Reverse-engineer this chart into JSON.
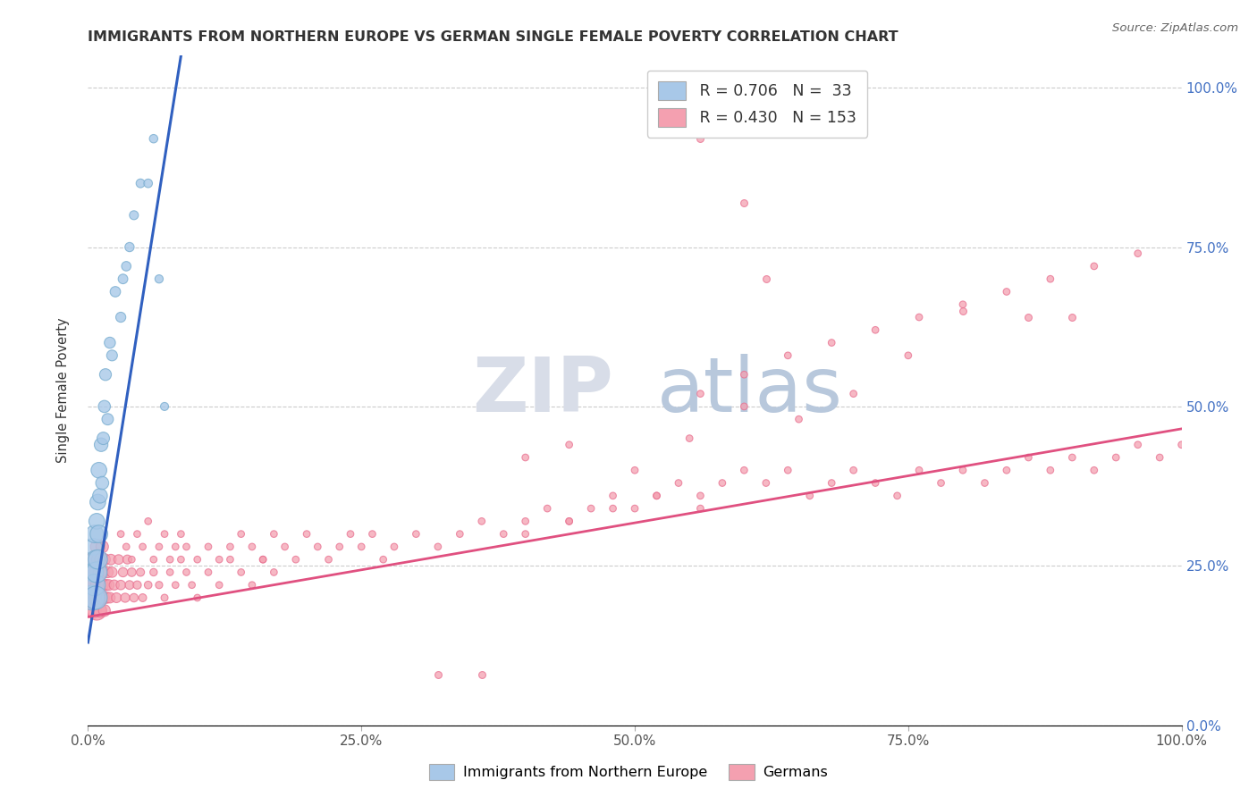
{
  "title": "IMMIGRANTS FROM NORTHERN EUROPE VS GERMAN SINGLE FEMALE POVERTY CORRELATION CHART",
  "source": "Source: ZipAtlas.com",
  "ylabel": "Single Female Poverty",
  "blue_R": 0.706,
  "blue_N": 33,
  "pink_R": 0.43,
  "pink_N": 153,
  "blue_color": "#a8c8e8",
  "pink_color": "#f4a0b0",
  "blue_edge_color": "#7aaed0",
  "pink_edge_color": "#e87090",
  "blue_line_color": "#3060c0",
  "pink_line_color": "#e05080",
  "watermark_zip": "ZIP",
  "watermark_atlas": "atlas",
  "legend_box_color": "#f8f8ff",
  "legend_text_color": "#333333",
  "legend_value_color": "#3366cc",
  "xlim": [
    0.0,
    1.0
  ],
  "ylim": [
    0.0,
    1.05
  ],
  "x_ticks": [
    0.0,
    0.25,
    0.5,
    0.75,
    1.0
  ],
  "x_tick_labels": [
    "0.0%",
    "25.0%",
    "50.0%",
    "75.0%",
    "100.0%"
  ],
  "y_ticks": [
    0.0,
    0.25,
    0.5,
    0.75,
    1.0
  ],
  "y_tick_labels": [
    "0.0%",
    "25.0%",
    "50.0%",
    "75.0%",
    "100.0%"
  ],
  "blue_line_x0": 0.0,
  "blue_line_y0": 0.13,
  "blue_line_x1": 0.085,
  "blue_line_y1": 1.05,
  "pink_line_x0": 0.0,
  "pink_line_y0": 0.17,
  "pink_line_x1": 1.0,
  "pink_line_y1": 0.465,
  "blue_scatter_x": [
    0.004,
    0.005,
    0.005,
    0.006,
    0.006,
    0.007,
    0.007,
    0.008,
    0.008,
    0.009,
    0.009,
    0.01,
    0.01,
    0.011,
    0.012,
    0.013,
    0.014,
    0.015,
    0.016,
    0.018,
    0.02,
    0.022,
    0.025,
    0.03,
    0.032,
    0.035,
    0.038,
    0.042,
    0.048,
    0.055,
    0.06,
    0.065,
    0.07
  ],
  "blue_scatter_y": [
    0.2,
    0.24,
    0.28,
    0.22,
    0.3,
    0.2,
    0.26,
    0.24,
    0.32,
    0.26,
    0.35,
    0.3,
    0.4,
    0.36,
    0.44,
    0.38,
    0.45,
    0.5,
    0.55,
    0.48,
    0.6,
    0.58,
    0.68,
    0.64,
    0.7,
    0.72,
    0.75,
    0.8,
    0.85,
    0.85,
    0.92,
    0.7,
    0.5
  ],
  "blue_scatter_sizes": [
    400,
    250,
    180,
    300,
    200,
    350,
    220,
    280,
    160,
    240,
    160,
    200,
    160,
    140,
    120,
    110,
    100,
    95,
    90,
    85,
    80,
    75,
    70,
    65,
    60,
    58,
    55,
    52,
    50,
    48,
    46,
    44,
    42
  ],
  "pink_scatter_dense_x": [
    0.004,
    0.005,
    0.005,
    0.006,
    0.006,
    0.007,
    0.007,
    0.008,
    0.008,
    0.009,
    0.009,
    0.01,
    0.01,
    0.011,
    0.011,
    0.012,
    0.012,
    0.013,
    0.013,
    0.014,
    0.014,
    0.015,
    0.015,
    0.016,
    0.017,
    0.018,
    0.019,
    0.02,
    0.021,
    0.022,
    0.024,
    0.026,
    0.028,
    0.03,
    0.032,
    0.034,
    0.036,
    0.038,
    0.04,
    0.042,
    0.045,
    0.048,
    0.05,
    0.055,
    0.06,
    0.065,
    0.07,
    0.075,
    0.08,
    0.085,
    0.09,
    0.095,
    0.1,
    0.11,
    0.12,
    0.13,
    0.14,
    0.15,
    0.16,
    0.17
  ],
  "pink_scatter_dense_y": [
    0.2,
    0.22,
    0.18,
    0.22,
    0.26,
    0.2,
    0.24,
    0.18,
    0.24,
    0.2,
    0.28,
    0.22,
    0.26,
    0.18,
    0.24,
    0.2,
    0.26,
    0.22,
    0.28,
    0.2,
    0.24,
    0.18,
    0.26,
    0.22,
    0.2,
    0.24,
    0.22,
    0.2,
    0.26,
    0.24,
    0.22,
    0.2,
    0.26,
    0.22,
    0.24,
    0.2,
    0.26,
    0.22,
    0.24,
    0.2,
    0.22,
    0.24,
    0.2,
    0.22,
    0.24,
    0.22,
    0.2,
    0.24,
    0.22,
    0.26,
    0.24,
    0.22,
    0.2,
    0.24,
    0.22,
    0.26,
    0.24,
    0.22,
    0.26,
    0.24
  ],
  "pink_scatter_dense_sizes": [
    300,
    200,
    160,
    280,
    180,
    300,
    160,
    240,
    140,
    200,
    140,
    180,
    140,
    120,
    120,
    110,
    110,
    100,
    100,
    95,
    95,
    90,
    90,
    85,
    80,
    78,
    75,
    72,
    70,
    68,
    65,
    62,
    60,
    58,
    56,
    54,
    52,
    50,
    48,
    46,
    44,
    42,
    40,
    38,
    36,
    34,
    32,
    30,
    30,
    30,
    30,
    30,
    30,
    30,
    30,
    30,
    30,
    30,
    30,
    30
  ],
  "pink_scatter_spread_x": [
    0.03,
    0.035,
    0.04,
    0.045,
    0.05,
    0.055,
    0.06,
    0.065,
    0.07,
    0.075,
    0.08,
    0.085,
    0.09,
    0.1,
    0.11,
    0.12,
    0.13,
    0.14,
    0.15,
    0.16,
    0.17,
    0.18,
    0.19,
    0.2,
    0.21,
    0.22,
    0.23,
    0.24,
    0.25,
    0.26,
    0.27,
    0.28,
    0.3,
    0.32,
    0.34,
    0.36,
    0.38,
    0.4,
    0.42,
    0.44,
    0.46,
    0.48,
    0.5,
    0.52,
    0.54,
    0.56,
    0.58,
    0.6,
    0.62,
    0.64,
    0.66,
    0.68,
    0.7,
    0.72,
    0.74,
    0.76,
    0.78,
    0.8,
    0.82,
    0.84,
    0.86,
    0.88,
    0.9,
    0.92,
    0.94,
    0.96,
    0.98,
    1.0,
    0.56,
    0.6,
    0.64,
    0.68,
    0.72,
    0.76,
    0.8,
    0.84,
    0.88,
    0.92,
    0.96,
    0.4,
    0.44,
    0.48,
    0.52,
    0.56,
    0.4,
    0.44,
    0.5,
    0.55,
    0.6,
    0.65,
    0.7,
    0.75
  ],
  "pink_scatter_spread_y": [
    0.3,
    0.28,
    0.26,
    0.3,
    0.28,
    0.32,
    0.26,
    0.28,
    0.3,
    0.26,
    0.28,
    0.3,
    0.28,
    0.26,
    0.28,
    0.26,
    0.28,
    0.3,
    0.28,
    0.26,
    0.3,
    0.28,
    0.26,
    0.3,
    0.28,
    0.26,
    0.28,
    0.3,
    0.28,
    0.3,
    0.26,
    0.28,
    0.3,
    0.28,
    0.3,
    0.32,
    0.3,
    0.32,
    0.34,
    0.32,
    0.34,
    0.36,
    0.34,
    0.36,
    0.38,
    0.36,
    0.38,
    0.4,
    0.38,
    0.4,
    0.36,
    0.38,
    0.4,
    0.38,
    0.36,
    0.4,
    0.38,
    0.4,
    0.38,
    0.4,
    0.42,
    0.4,
    0.42,
    0.4,
    0.42,
    0.44,
    0.42,
    0.44,
    0.52,
    0.55,
    0.58,
    0.6,
    0.62,
    0.64,
    0.66,
    0.68,
    0.7,
    0.72,
    0.74,
    0.3,
    0.32,
    0.34,
    0.36,
    0.34,
    0.42,
    0.44,
    0.4,
    0.45,
    0.5,
    0.48,
    0.52,
    0.58
  ],
  "pink_outliers_x": [
    0.56,
    0.6,
    0.62,
    0.8,
    0.86,
    0.9,
    0.32,
    0.36
  ],
  "pink_outliers_y": [
    0.92,
    0.82,
    0.7,
    0.65,
    0.64,
    0.64,
    0.08,
    0.08
  ],
  "pink_size_spread": 30,
  "pink_size_outlier": 32
}
